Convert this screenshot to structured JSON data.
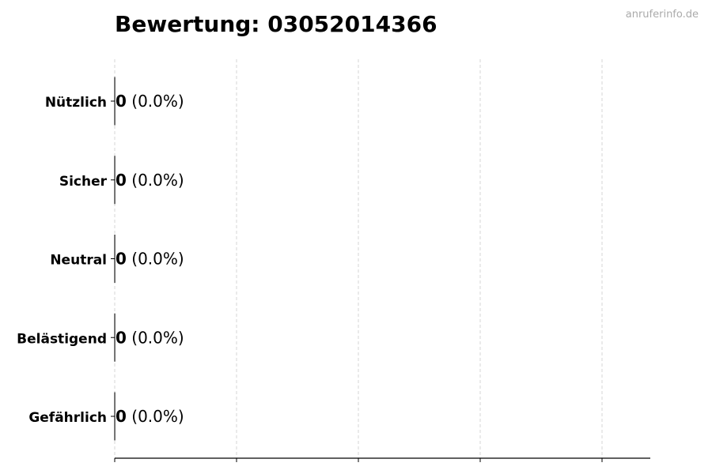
{
  "watermark": "anruferinfo.de",
  "chart_data": {
    "type": "bar",
    "orientation": "horizontal",
    "title": "Bewertung: 03052014366",
    "categories": [
      "Nützlich",
      "Sicher",
      "Neutral",
      "Belästigend",
      "Gefährlich"
    ],
    "values": [
      0,
      0,
      0,
      0,
      0
    ],
    "percent_labels": [
      "(0.0%)",
      "(0.0%)",
      "(0.0%)",
      "(0.0%)",
      "(0.0%)"
    ],
    "xlabel": "",
    "ylabel": "",
    "x_tick_labels_shown": false,
    "grid": "vertical dashed",
    "legend": "none",
    "colors": {
      "bar_edge": "#000000",
      "grid": "#cccccc",
      "watermark": "#aaaaaa"
    }
  }
}
